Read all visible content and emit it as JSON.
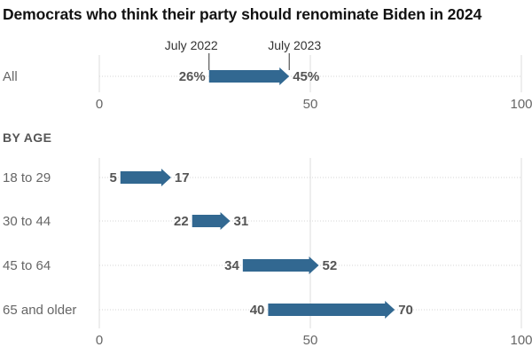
{
  "chart_data": {
    "type": "arrow-range",
    "title": "Democrats who think their party should renominate Biden in 2024",
    "xlim": [
      0,
      100
    ],
    "xticks": [
      0,
      50,
      100
    ],
    "start_label": "July 2022",
    "end_label": "July 2023",
    "color": "#326891",
    "overall": {
      "categories": [
        "All"
      ],
      "start": [
        26
      ],
      "end": [
        45
      ],
      "start_labels": [
        "26%"
      ],
      "end_labels": [
        "45%"
      ]
    },
    "by_age": {
      "heading": "BY AGE",
      "categories": [
        "18 to 29",
        "30 to 44",
        "45 to 64",
        "65 and older"
      ],
      "start": [
        5,
        22,
        34,
        40
      ],
      "end": [
        17,
        31,
        52,
        70
      ],
      "start_labels": [
        "5",
        "22",
        "34",
        "40"
      ],
      "end_labels": [
        "17",
        "31",
        "52",
        "70"
      ]
    }
  }
}
